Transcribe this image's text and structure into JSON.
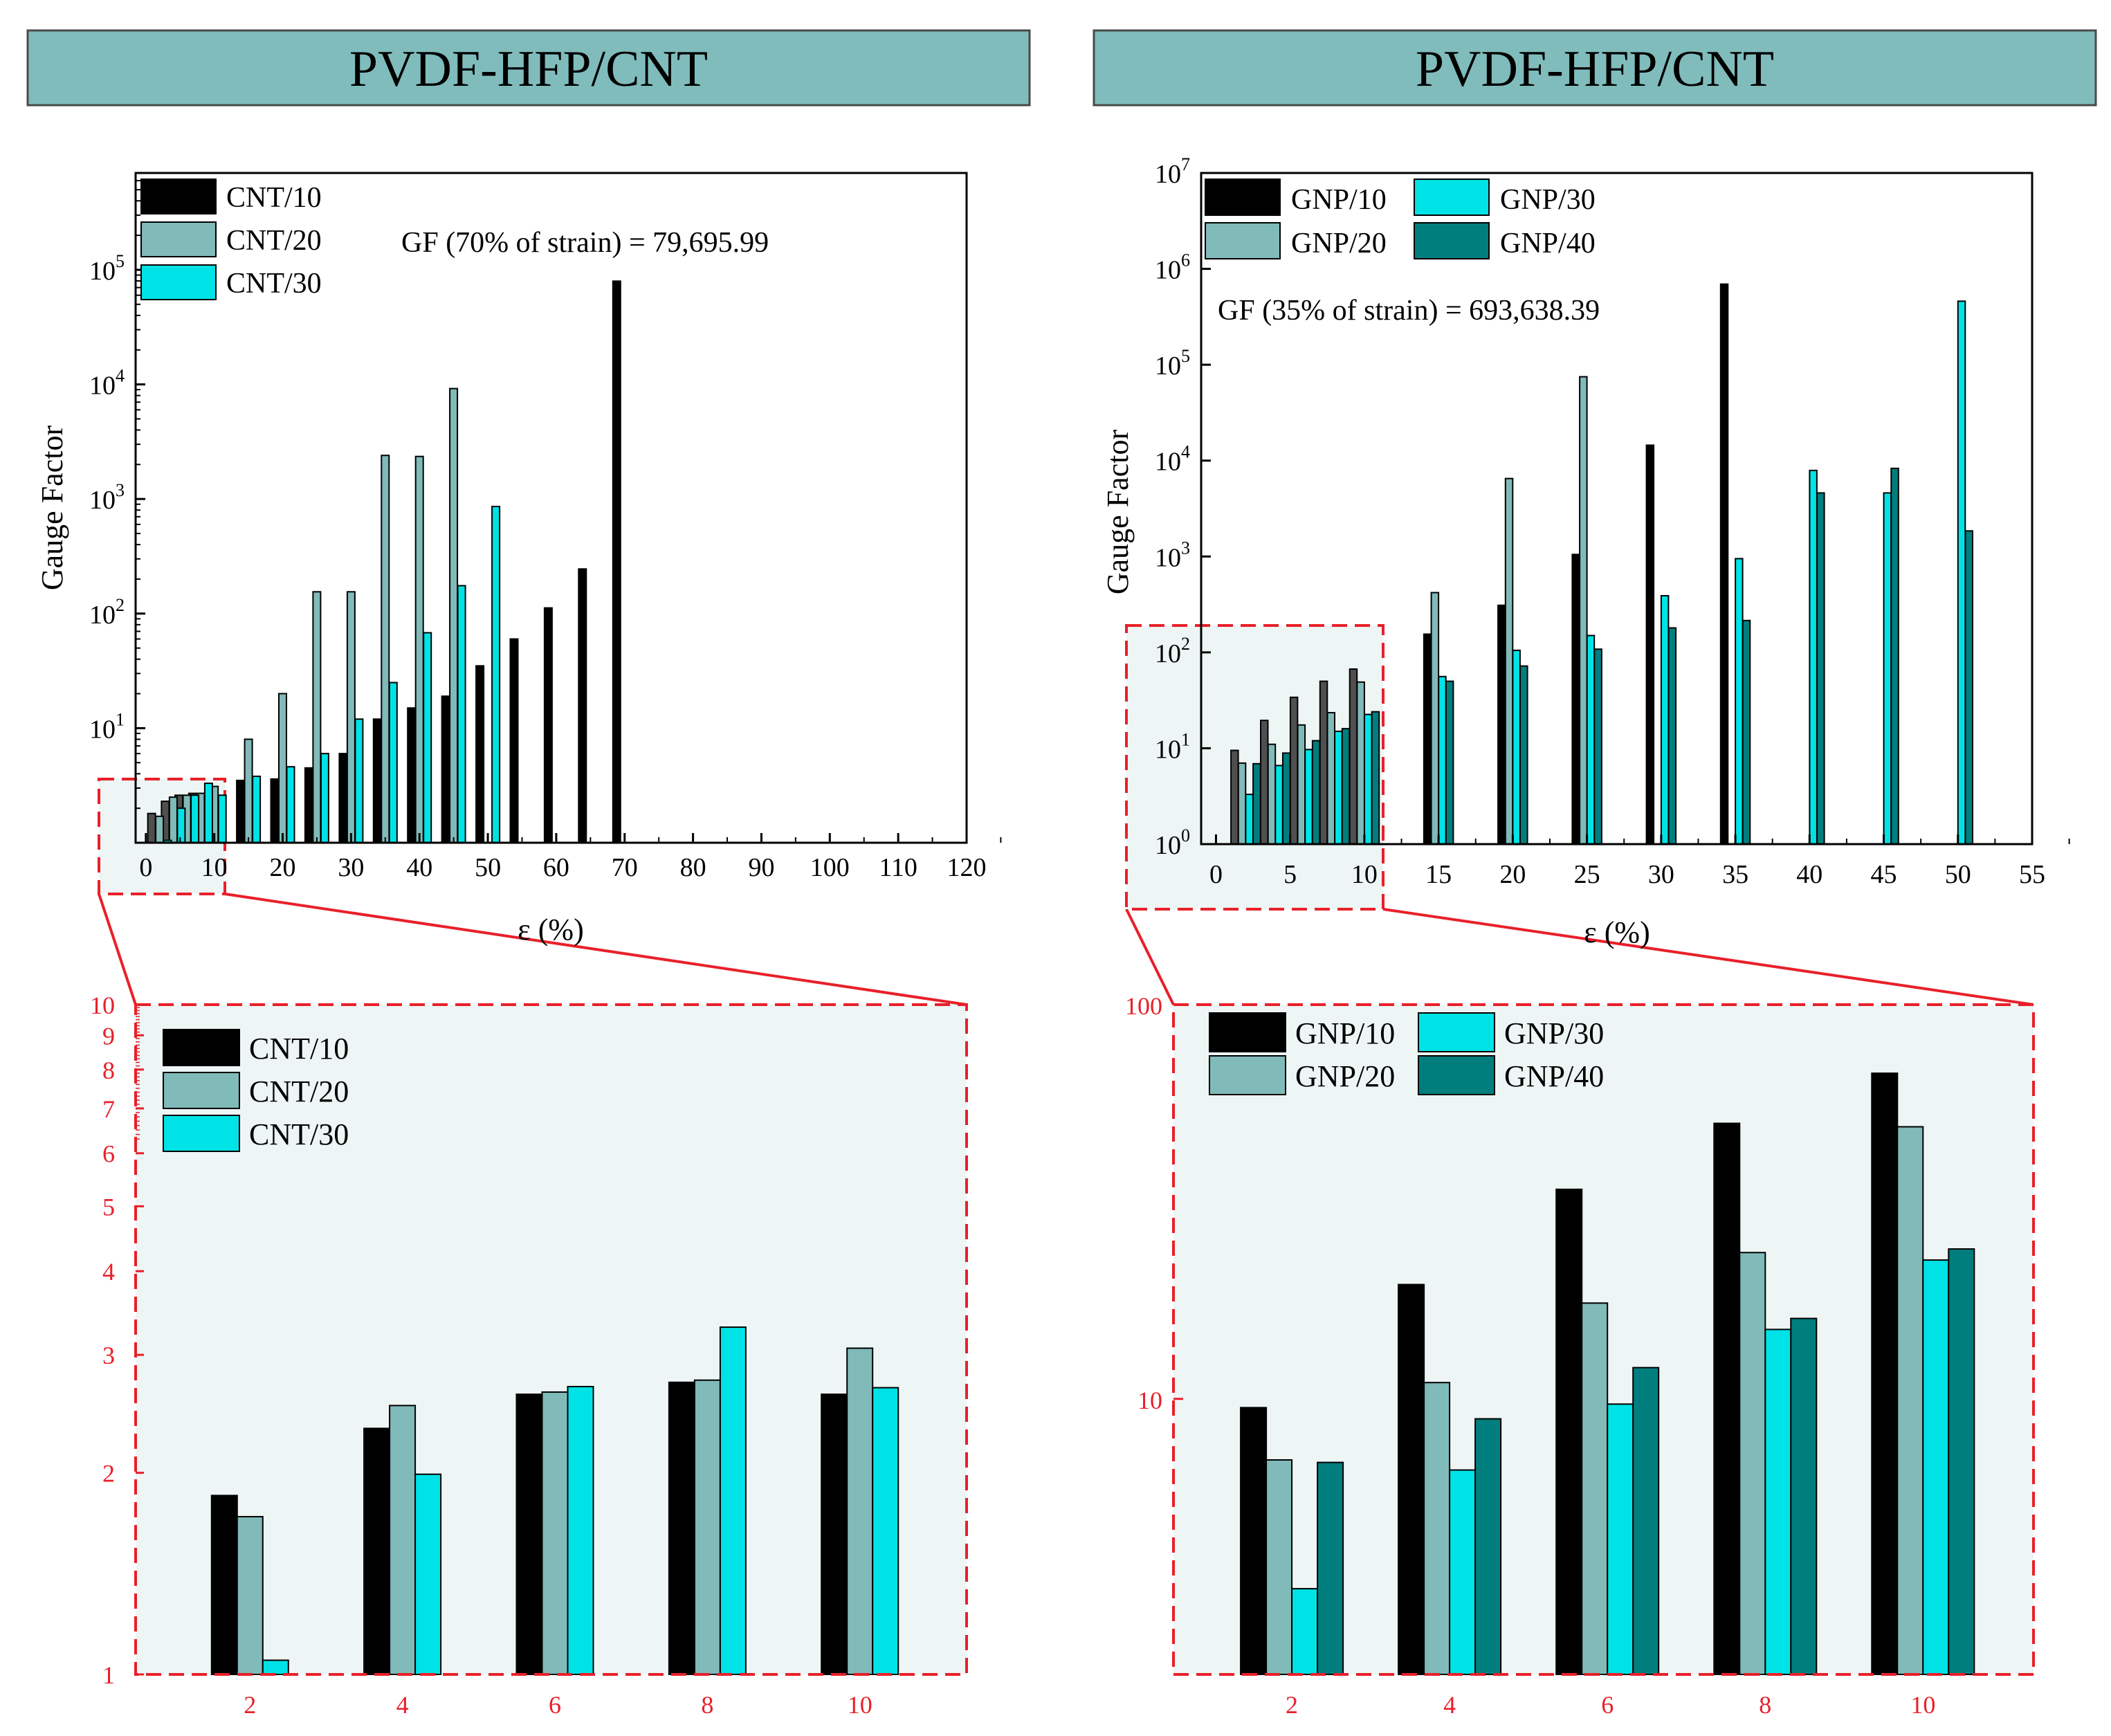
{
  "colors": {
    "banner_fill": "#80BCBC",
    "banner_stroke": "#4a4a4a",
    "zoom_red": "#E8202A",
    "zoom_fill": "#EEF5F5",
    "series": {
      "black": "#000000",
      "gray": "#80BAB9",
      "cyan": "#00E3E6",
      "teal": "#007E7E",
      "darkgray": "#4F4F4F"
    }
  },
  "panels": [
    {
      "banner": "PVDF-HFP/CNT"
    },
    {
      "banner": "PVDF-HFP/CNT"
    }
  ],
  "chart_data": [
    {
      "id": "cnt_main",
      "type": "bar",
      "scale": "log",
      "xlabel": "ε (%)",
      "ylabel": "Gauge Factor",
      "xlim": [
        -1.5,
        120
      ],
      "ylim": [
        1,
        700000
      ],
      "xticks": [
        "0",
        "10",
        "20",
        "30",
        "40",
        "50",
        "60",
        "70",
        "80",
        "90",
        "100",
        "110",
        "120"
      ],
      "yticks": [
        {
          "base": "10",
          "exp": "1",
          "value": 10
        },
        {
          "base": "10",
          "exp": "2",
          "value": 100
        },
        {
          "base": "10",
          "exp": "3",
          "value": 1000
        },
        {
          "base": "10",
          "exp": "4",
          "value": 10000
        },
        {
          "base": "10",
          "exp": "5",
          "value": 100000
        }
      ],
      "annotation": "GF (70% of strain) = 79,695.99",
      "legend": [
        "CNT/10",
        "CNT/20",
        "CNT/30"
      ],
      "series": [
        {
          "name": "CNT/10",
          "x": [
            2,
            4,
            6,
            8,
            10,
            15,
            20,
            25,
            30,
            35,
            40,
            45,
            50,
            55,
            60,
            65,
            70
          ],
          "values": [
            1.8,
            2.3,
            2.6,
            2.7,
            2.6,
            3.5,
            3.6,
            4.5,
            6,
            12,
            15,
            19,
            35,
            60,
            112,
            245,
            79696
          ]
        },
        {
          "name": "CNT/20",
          "x": [
            2,
            4,
            6,
            8,
            10,
            15,
            20,
            25,
            30,
            35,
            40,
            45
          ],
          "values": [
            1.7,
            2.5,
            2.6,
            2.7,
            3.1,
            8,
            20,
            155,
            155,
            2400,
            2350,
            9200
          ]
        },
        {
          "name": "CNT/30",
          "x": [
            2,
            4,
            6,
            8,
            10,
            15,
            20,
            25,
            30,
            35,
            40,
            45,
            50
          ],
          "values": [
            1.05,
            2,
            2.6,
            3.3,
            2.6,
            3.8,
            4.6,
            6,
            12,
            25,
            68,
            175,
            860
          ]
        }
      ]
    },
    {
      "id": "cnt_zoom",
      "type": "bar",
      "scale": "log",
      "xlim": [
        0.5,
        11.4
      ],
      "ylim": [
        1,
        10
      ],
      "xticks": [
        "2",
        "4",
        "6",
        "8",
        "10"
      ],
      "yticks": [
        "1",
        "2",
        "3",
        "4",
        "5",
        "6",
        "7",
        "8",
        "9",
        "10"
      ],
      "legend": [
        "CNT/10",
        "CNT/20",
        "CNT/30"
      ],
      "categories": [
        "2",
        "4",
        "6",
        "8",
        "10"
      ],
      "series": [
        {
          "name": "CNT/10",
          "values": [
            1.85,
            2.33,
            2.62,
            2.73,
            2.62
          ]
        },
        {
          "name": "CNT/20",
          "values": [
            1.72,
            2.52,
            2.64,
            2.75,
            3.07
          ]
        },
        {
          "name": "CNT/30",
          "values": [
            1.05,
            1.99,
            2.69,
            3.3,
            2.68
          ]
        }
      ]
    },
    {
      "id": "gnp_main",
      "type": "bar",
      "scale": "log",
      "xlabel": "ε (%)",
      "ylabel": "Gauge Factor",
      "xlim": [
        -1,
        55
      ],
      "ylim": [
        1,
        10000000
      ],
      "xticks": [
        "0",
        "5",
        "10",
        "15",
        "20",
        "25",
        "30",
        "35",
        "40",
        "45",
        "50",
        "55"
      ],
      "yticks": [
        {
          "base": "10",
          "exp": "0",
          "value": 1
        },
        {
          "base": "10",
          "exp": "1",
          "value": 10
        },
        {
          "base": "10",
          "exp": "2",
          "value": 100
        },
        {
          "base": "10",
          "exp": "3",
          "value": 1000
        },
        {
          "base": "10",
          "exp": "4",
          "value": 10000
        },
        {
          "base": "10",
          "exp": "5",
          "value": 100000
        },
        {
          "base": "10",
          "exp": "6",
          "value": 1000000
        },
        {
          "base": "10",
          "exp": "7",
          "value": 10000000
        }
      ],
      "annotation": "GF (35% of strain) = 693,638.39",
      "legend": [
        "GNP/10",
        "GNP/30",
        "GNP/20",
        "GNP/40"
      ],
      "series": [
        {
          "name": "GNP/10",
          "x": [
            2,
            4,
            6,
            8,
            10,
            15,
            20,
            25,
            30,
            35
          ],
          "values": [
            9.5,
            19.5,
            34,
            50,
            67,
            155,
            310,
            1050,
            14500,
            693638
          ]
        },
        {
          "name": "GNP/20",
          "x": [
            2,
            4,
            6,
            8,
            10,
            15,
            20,
            25
          ],
          "values": [
            7,
            11,
            17.5,
            23.5,
            49,
            420,
            6500,
            75000
          ]
        },
        {
          "name": "GNP/30",
          "x": [
            2,
            4,
            6,
            8,
            10,
            15,
            20,
            25,
            30,
            35,
            40,
            45,
            50
          ],
          "values": [
            3.3,
            6.6,
            9.7,
            15,
            22.5,
            56,
            105,
            150,
            390,
            950,
            7900,
            4600,
            460000
          ]
        },
        {
          "name": "GNP/40",
          "x": [
            2,
            4,
            6,
            8,
            10,
            15,
            20,
            25,
            30,
            35,
            40,
            45,
            50
          ],
          "values": [
            6.9,
            8.9,
            12,
            16,
            24,
            50,
            72,
            108,
            180,
            215,
            4600,
            8300,
            1850
          ]
        }
      ]
    },
    {
      "id": "gnp_zoom",
      "type": "bar",
      "scale": "log",
      "xlim": [
        0.5,
        11.4
      ],
      "ylim": [
        2,
        100
      ],
      "xticks": [
        "2",
        "4",
        "6",
        "8",
        "10"
      ],
      "yticks": [
        "10",
        "100"
      ],
      "legend": [
        "GNP/10",
        "GNP/30",
        "GNP/20",
        "GNP/40"
      ],
      "categories": [
        "2",
        "4",
        "6",
        "8",
        "10"
      ],
      "series": [
        {
          "name": "GNP/10",
          "values": [
            9.5,
            19.5,
            34,
            50,
            67
          ]
        },
        {
          "name": "GNP/20",
          "values": [
            7,
            11,
            17.5,
            23.5,
            49
          ]
        },
        {
          "name": "GNP/30",
          "values": [
            3.3,
            6.6,
            9.7,
            15,
            22.5
          ]
        },
        {
          "name": "GNP/40",
          "values": [
            6.9,
            8.9,
            12,
            16,
            24
          ]
        }
      ]
    }
  ]
}
